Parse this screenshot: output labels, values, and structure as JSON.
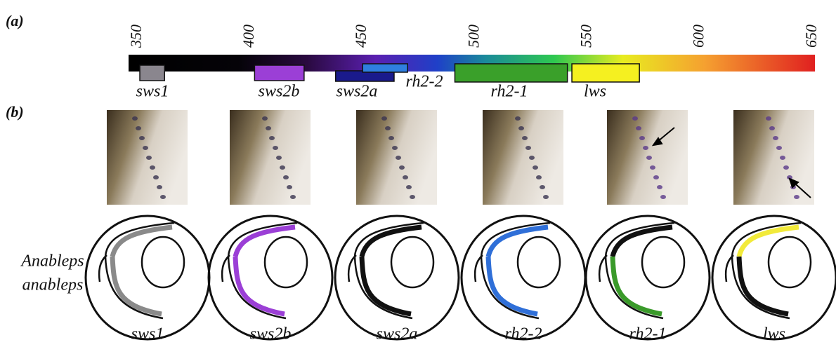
{
  "panel_a": {
    "label": "(a)",
    "xlim": [
      346,
      651
    ],
    "xticks": [
      350,
      400,
      450,
      500,
      550,
      600,
      650
    ],
    "opsins": [
      {
        "name": "sws1",
        "range": [
          351,
          362
        ],
        "color": "#8a868e"
      },
      {
        "name": "sws2b",
        "range": [
          402,
          424
        ],
        "color": "#9b3fd6"
      },
      {
        "name": "sws2a",
        "range": [
          438,
          464
        ],
        "color": "#1a1a8c"
      },
      {
        "name": "rh2-2",
        "range": [
          450,
          470
        ],
        "color": "#2f7fe0"
      },
      {
        "name": "rh2-1",
        "range": [
          491,
          541
        ],
        "color": "#3aa02a"
      },
      {
        "name": "lws",
        "range": [
          543,
          573
        ],
        "color": "#f5f020"
      }
    ]
  },
  "panel_b": {
    "label": "(b)",
    "species": [
      "Anableps",
      "anableps"
    ],
    "columns": [
      {
        "label": "sws1",
        "top_color": "#8a8a8a",
        "bottom_color": "#8a8a8a"
      },
      {
        "label": "sws2b",
        "top_color": "#9b3fd6",
        "bottom_color": "#9b3fd6"
      },
      {
        "label": "sws2a",
        "top_color": "#111111",
        "bottom_color": "#111111"
      },
      {
        "label": "rh2-2",
        "top_color": "#2f6fd8",
        "bottom_color": "#2f6fd8"
      },
      {
        "label": "rh2-1",
        "top_color": "#111111",
        "bottom_color": "#3a9a2a"
      },
      {
        "label": "lws",
        "top_color": "#f2ea3a",
        "bottom_color": "#111111"
      }
    ]
  }
}
